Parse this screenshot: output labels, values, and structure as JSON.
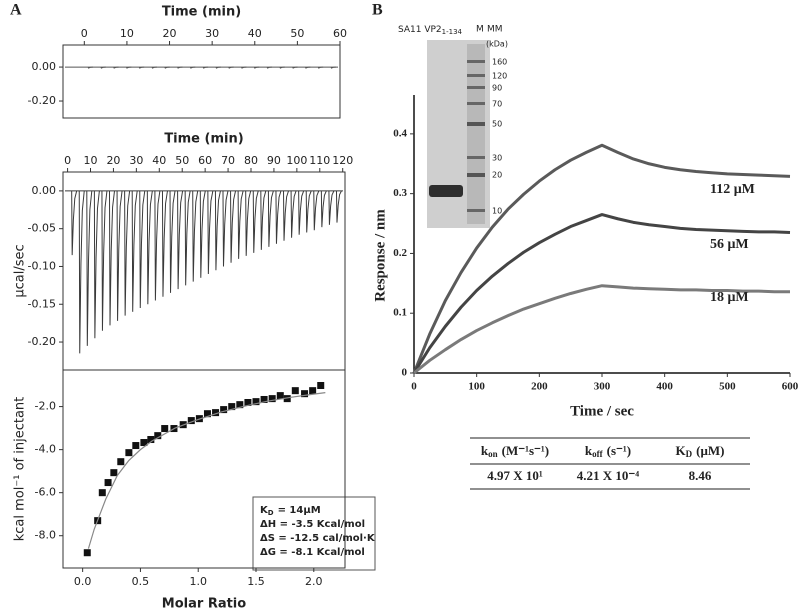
{
  "panel_labels": [
    "A",
    "B"
  ],
  "chart_data": [
    {
      "type": "spike",
      "xlabel": "Time (min)",
      "axis_position": "top",
      "color": "#555555",
      "x": [
        1,
        4,
        7,
        10,
        13,
        16,
        19,
        22,
        25,
        28,
        31,
        34,
        37,
        40,
        43,
        46,
        49,
        52,
        55,
        58
      ],
      "values": [
        -0.006,
        -0.006,
        -0.006,
        -0.006,
        -0.006,
        -0.006,
        -0.006,
        -0.006,
        -0.006,
        -0.006,
        -0.006,
        -0.006,
        -0.006,
        -0.006,
        -0.006,
        -0.006,
        -0.006,
        -0.006,
        -0.006,
        -0.006
      ],
      "xlim": [
        -5,
        60
      ],
      "xticks": [
        0,
        10,
        20,
        30,
        40,
        50,
        60
      ],
      "ylim": [
        -0.3,
        0.13
      ],
      "yticks": [
        {
          "value": 0,
          "label": "0.00"
        },
        {
          "value": -0.2,
          "label": "-0.20"
        }
      ]
    },
    {
      "type": "spike",
      "xlabel": "Time (min)",
      "ylabel": "μcal/sec",
      "axis_position": "top",
      "color": "#3a3a3a",
      "x": [
        2,
        5.3,
        8.6,
        11.9,
        15.2,
        18.5,
        21.8,
        25.1,
        28.4,
        31.7,
        35,
        38.3,
        41.6,
        44.9,
        48.2,
        51.5,
        54.8,
        58.1,
        61.4,
        64.7,
        68,
        71.3,
        74.6,
        77.9,
        81.2,
        84.5,
        87.8,
        91.1,
        94.4,
        97.7,
        101,
        104.3,
        107.6,
        110.9,
        114.2,
        117.5
      ],
      "values": [
        -0.085,
        -0.215,
        -0.205,
        -0.195,
        -0.185,
        -0.178,
        -0.172,
        -0.165,
        -0.16,
        -0.155,
        -0.15,
        -0.145,
        -0.14,
        -0.135,
        -0.13,
        -0.125,
        -0.12,
        -0.115,
        -0.11,
        -0.105,
        -0.1,
        -0.095,
        -0.09,
        -0.086,
        -0.082,
        -0.078,
        -0.074,
        -0.07,
        -0.066,
        -0.062,
        -0.058,
        -0.055,
        -0.052,
        -0.048,
        -0.045,
        -0.042
      ],
      "xlim": [
        -2,
        121
      ],
      "xticks": [
        0,
        10,
        20,
        30,
        40,
        50,
        60,
        70,
        80,
        90,
        100,
        110,
        120
      ],
      "ylim": [
        -0.237,
        0.025
      ],
      "yticks": [
        {
          "value": 0,
          "label": "0.00"
        },
        {
          "value": -0.05,
          "label": "-0.05"
        },
        {
          "value": -0.1,
          "label": "-0.10"
        },
        {
          "value": -0.15,
          "label": "-0.15"
        },
        {
          "value": -0.2,
          "label": "-0.20"
        }
      ]
    },
    {
      "type": "scatter",
      "xlabel": "Molar Ratio",
      "ylabel": "kcal mol⁻¹ of injectant",
      "axis_position": "bottom",
      "series": [
        {
          "mode": "markers",
          "color": "#111111",
          "x": [
            0.04,
            0.13,
            0.17,
            0.22,
            0.27,
            0.33,
            0.4,
            0.46,
            0.53,
            0.59,
            0.65,
            0.71,
            0.79,
            0.87,
            0.94,
            1.01,
            1.08,
            1.15,
            1.22,
            1.29,
            1.36,
            1.43,
            1.5,
            1.57,
            1.64,
            1.71,
            1.77,
            1.84,
            1.92,
            1.99,
            2.06
          ],
          "values": [
            -8.79,
            -7.3,
            -6.0,
            -5.53,
            -5.07,
            -4.56,
            -4.14,
            -3.81,
            -3.67,
            -3.53,
            -3.35,
            -3.02,
            -3.02,
            -2.84,
            -2.65,
            -2.56,
            -2.33,
            -2.28,
            -2.14,
            -2.0,
            -1.91,
            -1.81,
            -1.77,
            -1.67,
            -1.63,
            -1.49,
            -1.63,
            -1.26,
            -1.4,
            -1.26,
            -1.02
          ]
        },
        {
          "mode": "line",
          "color": "#888888",
          "x": [
            0.05,
            0.1,
            0.2,
            0.3,
            0.4,
            0.5,
            0.6,
            0.8,
            1.0,
            1.2,
            1.4,
            1.6,
            1.8,
            2.0,
            2.1
          ],
          "values": [
            -8.6,
            -7.7,
            -6.3,
            -5.2,
            -4.5,
            -4.0,
            -3.6,
            -3.0,
            -2.6,
            -2.25,
            -1.98,
            -1.75,
            -1.57,
            -1.42,
            -1.35
          ]
        }
      ],
      "xlim": [
        -0.17,
        2.27
      ],
      "xticks": [
        {
          "value": 0,
          "label": "0.0"
        },
        0.5,
        {
          "value": 1,
          "label": "1.0"
        },
        1.5,
        {
          "value": 2,
          "label": "2.0"
        }
      ],
      "ylim": [
        -9.5,
        -0.3
      ],
      "yticks": [
        {
          "value": -2,
          "label": "-2.0"
        },
        {
          "value": -4,
          "label": "-4.0"
        },
        {
          "value": -6,
          "label": "-6.0"
        },
        {
          "value": -8,
          "label": "-8.0"
        }
      ],
      "annotation": [
        {
          "symbol": "K",
          "sub": "D",
          "rest": "= 14μM"
        },
        "ΔH = -3.5 Kcal/mol",
        "ΔS = -12.5 cal/mol·K",
        "ΔG = -8.1 Kcal/mol"
      ]
    },
    {
      "type": "line",
      "xlabel": "Time / sec",
      "ylabel": "Response / nm",
      "axis_position": "bottom",
      "x": [
        0,
        25,
        50,
        75,
        100,
        125,
        150,
        175,
        200,
        225,
        250,
        275,
        300,
        325,
        350,
        375,
        400,
        425,
        450,
        475,
        500,
        525,
        550,
        575,
        600
      ],
      "series": [
        {
          "name": "112 μM",
          "color": "#5a5a5a",
          "values": [
            0,
            0.065,
            0.121,
            0.168,
            0.209,
            0.244,
            0.274,
            0.299,
            0.321,
            0.34,
            0.356,
            0.369,
            0.381,
            0.369,
            0.358,
            0.35,
            0.344,
            0.34,
            0.337,
            0.335,
            0.333,
            0.332,
            0.331,
            0.33,
            0.329
          ]
        },
        {
          "name": "56 μM",
          "color": "#444444",
          "values": [
            0,
            0.042,
            0.078,
            0.11,
            0.138,
            0.162,
            0.183,
            0.202,
            0.218,
            0.232,
            0.245,
            0.255,
            0.265,
            0.258,
            0.252,
            0.248,
            0.245,
            0.242,
            0.24,
            0.239,
            0.238,
            0.237,
            0.236,
            0.236,
            0.235
          ]
        },
        {
          "name": "18 μM",
          "color": "#7a7a7a",
          "values": [
            0,
            0.021,
            0.039,
            0.056,
            0.071,
            0.084,
            0.096,
            0.107,
            0.116,
            0.125,
            0.133,
            0.14,
            0.146,
            0.144,
            0.142,
            0.141,
            0.14,
            0.139,
            0.139,
            0.138,
            0.138,
            0.137,
            0.137,
            0.136,
            0.136
          ]
        }
      ],
      "xlim": [
        0,
        600
      ],
      "xticks": [
        0,
        100,
        200,
        300,
        400,
        500,
        600
      ],
      "ylim": [
        0,
        0.46
      ],
      "yticks": [
        0,
        0.1,
        0.2,
        0.3,
        0.4
      ]
    }
  ],
  "gel": {
    "sample_label": {
      "main": "SA11 VP2",
      "sub": "1-134"
    },
    "marker_lane": "M",
    "mm_label": "MM",
    "unit": "(kDa)",
    "markers": [
      160,
      120,
      90,
      70,
      50,
      30,
      20,
      10
    ]
  },
  "table": {
    "headers": [
      {
        "symbol": "k",
        "sub": "on",
        "unit": "(M⁻¹s⁻¹)"
      },
      {
        "symbol": "k",
        "sub": "off",
        "unit": "(s⁻¹)"
      },
      {
        "symbol": "K",
        "sub": "D",
        "unit": "(μM)"
      }
    ],
    "rows": [
      [
        "4.97 X 10¹",
        "4.21 X 10⁻⁴",
        "8.46"
      ]
    ]
  }
}
